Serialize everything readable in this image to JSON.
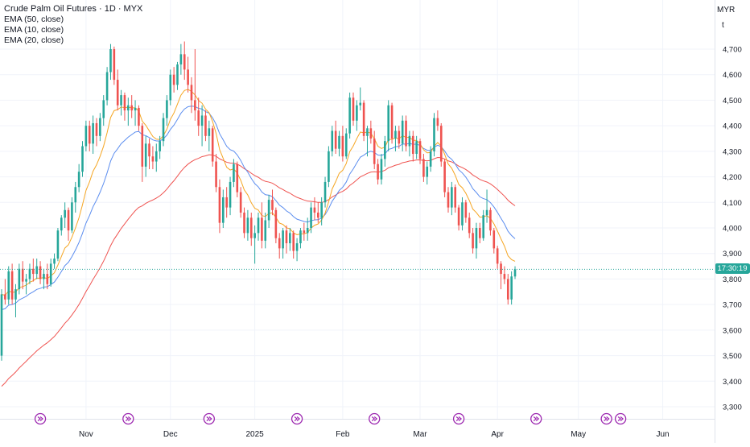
{
  "legend": {
    "title": "Crude Palm Oil Futures · 1D · MYX",
    "indicators": [
      "EMA (50, close)",
      "EMA (10, close)",
      "EMA (20, close)"
    ]
  },
  "price_axis": {
    "currency": "MYR",
    "unit": "t"
  },
  "countdown": "17:30:19",
  "colors": {
    "up": "#26a69a",
    "down": "#ef5350",
    "ema50": "#ef5350",
    "ema10": "#f5a623",
    "ema20": "#5b8def",
    "event": "#9c27b0",
    "lastline": "#26a69a"
  },
  "events_icon": "fast-forward-circle-icon",
  "chart_data": {
    "type": "candlestick",
    "title": "Crude Palm Oil Futures · 1D · MYX",
    "ylim": [
      3280,
      4800
    ],
    "y_ticks": [
      3300,
      3400,
      3500,
      3600,
      3700,
      3800,
      3900,
      4000,
      4100,
      4200,
      4300,
      4400,
      4500,
      4600,
      4700
    ],
    "x_labels": [
      {
        "label": "Nov",
        "index": 24
      },
      {
        "label": "Dec",
        "index": 48
      },
      {
        "label": "2025",
        "index": 72
      },
      {
        "label": "Feb",
        "index": 97
      },
      {
        "label": "Mar",
        "index": 119
      },
      {
        "label": "Apr",
        "index": 141
      },
      {
        "label": "May",
        "index": 164
      },
      {
        "label": "Jun",
        "index": 188
      }
    ],
    "event_indices": [
      11,
      36,
      59,
      84,
      106,
      130,
      152,
      172,
      176
    ],
    "last_price": 3838,
    "candles": [
      [
        3500,
        3760,
        3480,
        3740
      ],
      [
        3740,
        3800,
        3700,
        3720
      ],
      [
        3720,
        3850,
        3700,
        3830
      ],
      [
        3830,
        3860,
        3700,
        3720
      ],
      [
        3720,
        3780,
        3650,
        3760
      ],
      [
        3760,
        3860,
        3740,
        3840
      ],
      [
        3840,
        3870,
        3760,
        3790
      ],
      [
        3790,
        3820,
        3740,
        3800
      ],
      [
        3800,
        3860,
        3780,
        3840
      ],
      [
        3840,
        3880,
        3790,
        3820
      ],
      [
        3820,
        3880,
        3800,
        3850
      ],
      [
        3850,
        3870,
        3780,
        3800
      ],
      [
        3800,
        3840,
        3760,
        3820
      ],
      [
        3820,
        3860,
        3760,
        3780
      ],
      [
        3780,
        3880,
        3770,
        3860
      ],
      [
        3860,
        3900,
        3840,
        3880
      ],
      [
        3880,
        4000,
        3870,
        3990
      ],
      [
        3990,
        4050,
        3970,
        4040
      ],
      [
        4040,
        4100,
        4000,
        4070
      ],
      [
        4070,
        4080,
        3950,
        3990
      ],
      [
        3990,
        4120,
        3980,
        4100
      ],
      [
        4100,
        4180,
        4060,
        4160
      ],
      [
        4160,
        4250,
        4140,
        4220
      ],
      [
        4220,
        4340,
        4200,
        4320
      ],
      [
        4320,
        4420,
        4300,
        4400
      ],
      [
        4400,
        4420,
        4300,
        4330
      ],
      [
        4330,
        4440,
        4290,
        4410
      ],
      [
        4410,
        4430,
        4320,
        4360
      ],
      [
        4360,
        4450,
        4340,
        4430
      ],
      [
        4430,
        4520,
        4400,
        4500
      ],
      [
        4500,
        4630,
        4480,
        4610
      ],
      [
        4610,
        4720,
        4580,
        4700
      ],
      [
        4700,
        4710,
        4560,
        4580
      ],
      [
        4580,
        4620,
        4460,
        4480
      ],
      [
        4480,
        4540,
        4440,
        4520
      ],
      [
        4520,
        4530,
        4420,
        4460
      ],
      [
        4460,
        4510,
        4400,
        4480
      ],
      [
        4480,
        4520,
        4430,
        4460
      ],
      [
        4460,
        4500,
        4400,
        4470
      ],
      [
        4470,
        4480,
        4380,
        4400
      ],
      [
        4400,
        4410,
        4180,
        4240
      ],
      [
        4240,
        4360,
        4200,
        4330
      ],
      [
        4330,
        4350,
        4230,
        4280
      ],
      [
        4280,
        4320,
        4230,
        4260
      ],
      [
        4260,
        4330,
        4220,
        4300
      ],
      [
        4300,
        4360,
        4270,
        4340
      ],
      [
        4340,
        4450,
        4320,
        4430
      ],
      [
        4430,
        4520,
        4400,
        4500
      ],
      [
        4500,
        4620,
        4480,
        4600
      ],
      [
        4600,
        4630,
        4530,
        4560
      ],
      [
        4560,
        4650,
        4540,
        4640
      ],
      [
        4640,
        4720,
        4600,
        4680
      ],
      [
        4680,
        4730,
        4580,
        4620
      ],
      [
        4620,
        4670,
        4530,
        4560
      ],
      [
        4560,
        4590,
        4450,
        4500
      ],
      [
        4500,
        4700,
        4420,
        4460
      ],
      [
        4460,
        4510,
        4360,
        4400
      ],
      [
        4400,
        4480,
        4320,
        4440
      ],
      [
        4440,
        4460,
        4340,
        4360
      ],
      [
        4360,
        4420,
        4300,
        4390
      ],
      [
        4390,
        4400,
        4240,
        4260
      ],
      [
        4260,
        4290,
        4140,
        4160
      ],
      [
        4160,
        4190,
        3980,
        4020
      ],
      [
        4020,
        4150,
        4000,
        4120
      ],
      [
        4120,
        4160,
        4040,
        4080
      ],
      [
        4080,
        4200,
        4050,
        4180
      ],
      [
        4180,
        4270,
        4160,
        4250
      ],
      [
        4250,
        4260,
        4120,
        4140
      ],
      [
        4140,
        4160,
        4040,
        4060
      ],
      [
        4060,
        4080,
        3960,
        3980
      ],
      [
        3980,
        4070,
        3950,
        4040
      ],
      [
        4040,
        4060,
        3930,
        3960
      ],
      [
        3960,
        4010,
        3860,
        3980
      ],
      [
        3980,
        4060,
        3950,
        4040
      ],
      [
        4040,
        4100,
        3920,
        3950
      ],
      [
        3950,
        4060,
        3920,
        4030
      ],
      [
        4030,
        4130,
        4000,
        4110
      ],
      [
        4110,
        4150,
        4050,
        4070
      ],
      [
        4070,
        4080,
        3940,
        3960
      ],
      [
        3960,
        3980,
        3880,
        3920
      ],
      [
        3920,
        4000,
        3880,
        3990
      ],
      [
        3990,
        4010,
        3900,
        3940
      ],
      [
        3940,
        4000,
        3910,
        3980
      ],
      [
        3980,
        3990,
        3880,
        3910
      ],
      [
        3910,
        3960,
        3870,
        3940
      ],
      [
        3940,
        4000,
        3920,
        3990
      ],
      [
        3990,
        4020,
        3950,
        3980
      ],
      [
        3980,
        4040,
        3950,
        4000
      ],
      [
        4000,
        4100,
        3980,
        4080
      ],
      [
        4080,
        4120,
        4030,
        4060
      ],
      [
        4060,
        4100,
        4020,
        4040
      ],
      [
        4040,
        4120,
        4010,
        4100
      ],
      [
        4100,
        4200,
        4080,
        4180
      ],
      [
        4180,
        4320,
        4160,
        4300
      ],
      [
        4300,
        4400,
        4280,
        4380
      ],
      [
        4380,
        4420,
        4290,
        4310
      ],
      [
        4310,
        4380,
        4280,
        4360
      ],
      [
        4360,
        4400,
        4260,
        4280
      ],
      [
        4280,
        4390,
        4270,
        4370
      ],
      [
        4370,
        4530,
        4350,
        4510
      ],
      [
        4510,
        4530,
        4400,
        4420
      ],
      [
        4420,
        4500,
        4380,
        4480
      ],
      [
        4480,
        4550,
        4460,
        4490
      ],
      [
        4490,
        4500,
        4340,
        4360
      ],
      [
        4360,
        4400,
        4280,
        4390
      ],
      [
        4390,
        4420,
        4330,
        4350
      ],
      [
        4350,
        4380,
        4230,
        4250
      ],
      [
        4250,
        4270,
        4170,
        4190
      ],
      [
        4190,
        4290,
        4170,
        4270
      ],
      [
        4270,
        4360,
        4240,
        4340
      ],
      [
        4340,
        4500,
        4300,
        4480
      ],
      [
        4480,
        4490,
        4330,
        4350
      ],
      [
        4350,
        4400,
        4300,
        4380
      ],
      [
        4380,
        4400,
        4310,
        4330
      ],
      [
        4330,
        4440,
        4300,
        4420
      ],
      [
        4420,
        4440,
        4300,
        4320
      ],
      [
        4320,
        4380,
        4280,
        4360
      ],
      [
        4360,
        4380,
        4260,
        4290
      ],
      [
        4290,
        4360,
        4270,
        4340
      ],
      [
        4340,
        4350,
        4250,
        4270
      ],
      [
        4270,
        4290,
        4180,
        4200
      ],
      [
        4200,
        4260,
        4170,
        4240
      ],
      [
        4240,
        4320,
        4220,
        4300
      ],
      [
        4300,
        4450,
        4280,
        4430
      ],
      [
        4430,
        4460,
        4380,
        4400
      ],
      [
        4400,
        4410,
        4240,
        4260
      ],
      [
        4260,
        4270,
        4120,
        4140
      ],
      [
        4140,
        4160,
        4060,
        4080
      ],
      [
        4080,
        4180,
        4050,
        4160
      ],
      [
        4160,
        4170,
        4060,
        4080
      ],
      [
        4080,
        4090,
        3990,
        4010
      ],
      [
        4010,
        4120,
        3990,
        4100
      ],
      [
        4100,
        4110,
        4020,
        4040
      ],
      [
        4040,
        4060,
        3960,
        3980
      ],
      [
        3980,
        4000,
        3900,
        3920
      ],
      [
        3920,
        4020,
        3880,
        4000
      ],
      [
        4000,
        4020,
        3940,
        3960
      ],
      [
        3960,
        4070,
        3950,
        4050
      ],
      [
        4050,
        4150,
        4020,
        4070
      ],
      [
        4070,
        4080,
        3970,
        3990
      ],
      [
        3990,
        4000,
        3900,
        3920
      ],
      [
        3920,
        3930,
        3840,
        3860
      ],
      [
        3860,
        3870,
        3760,
        3820
      ],
      [
        3820,
        3850,
        3780,
        3800
      ],
      [
        3800,
        3820,
        3700,
        3720
      ],
      [
        3720,
        3830,
        3700,
        3810
      ],
      [
        3810,
        3850,
        3800,
        3838
      ]
    ]
  }
}
